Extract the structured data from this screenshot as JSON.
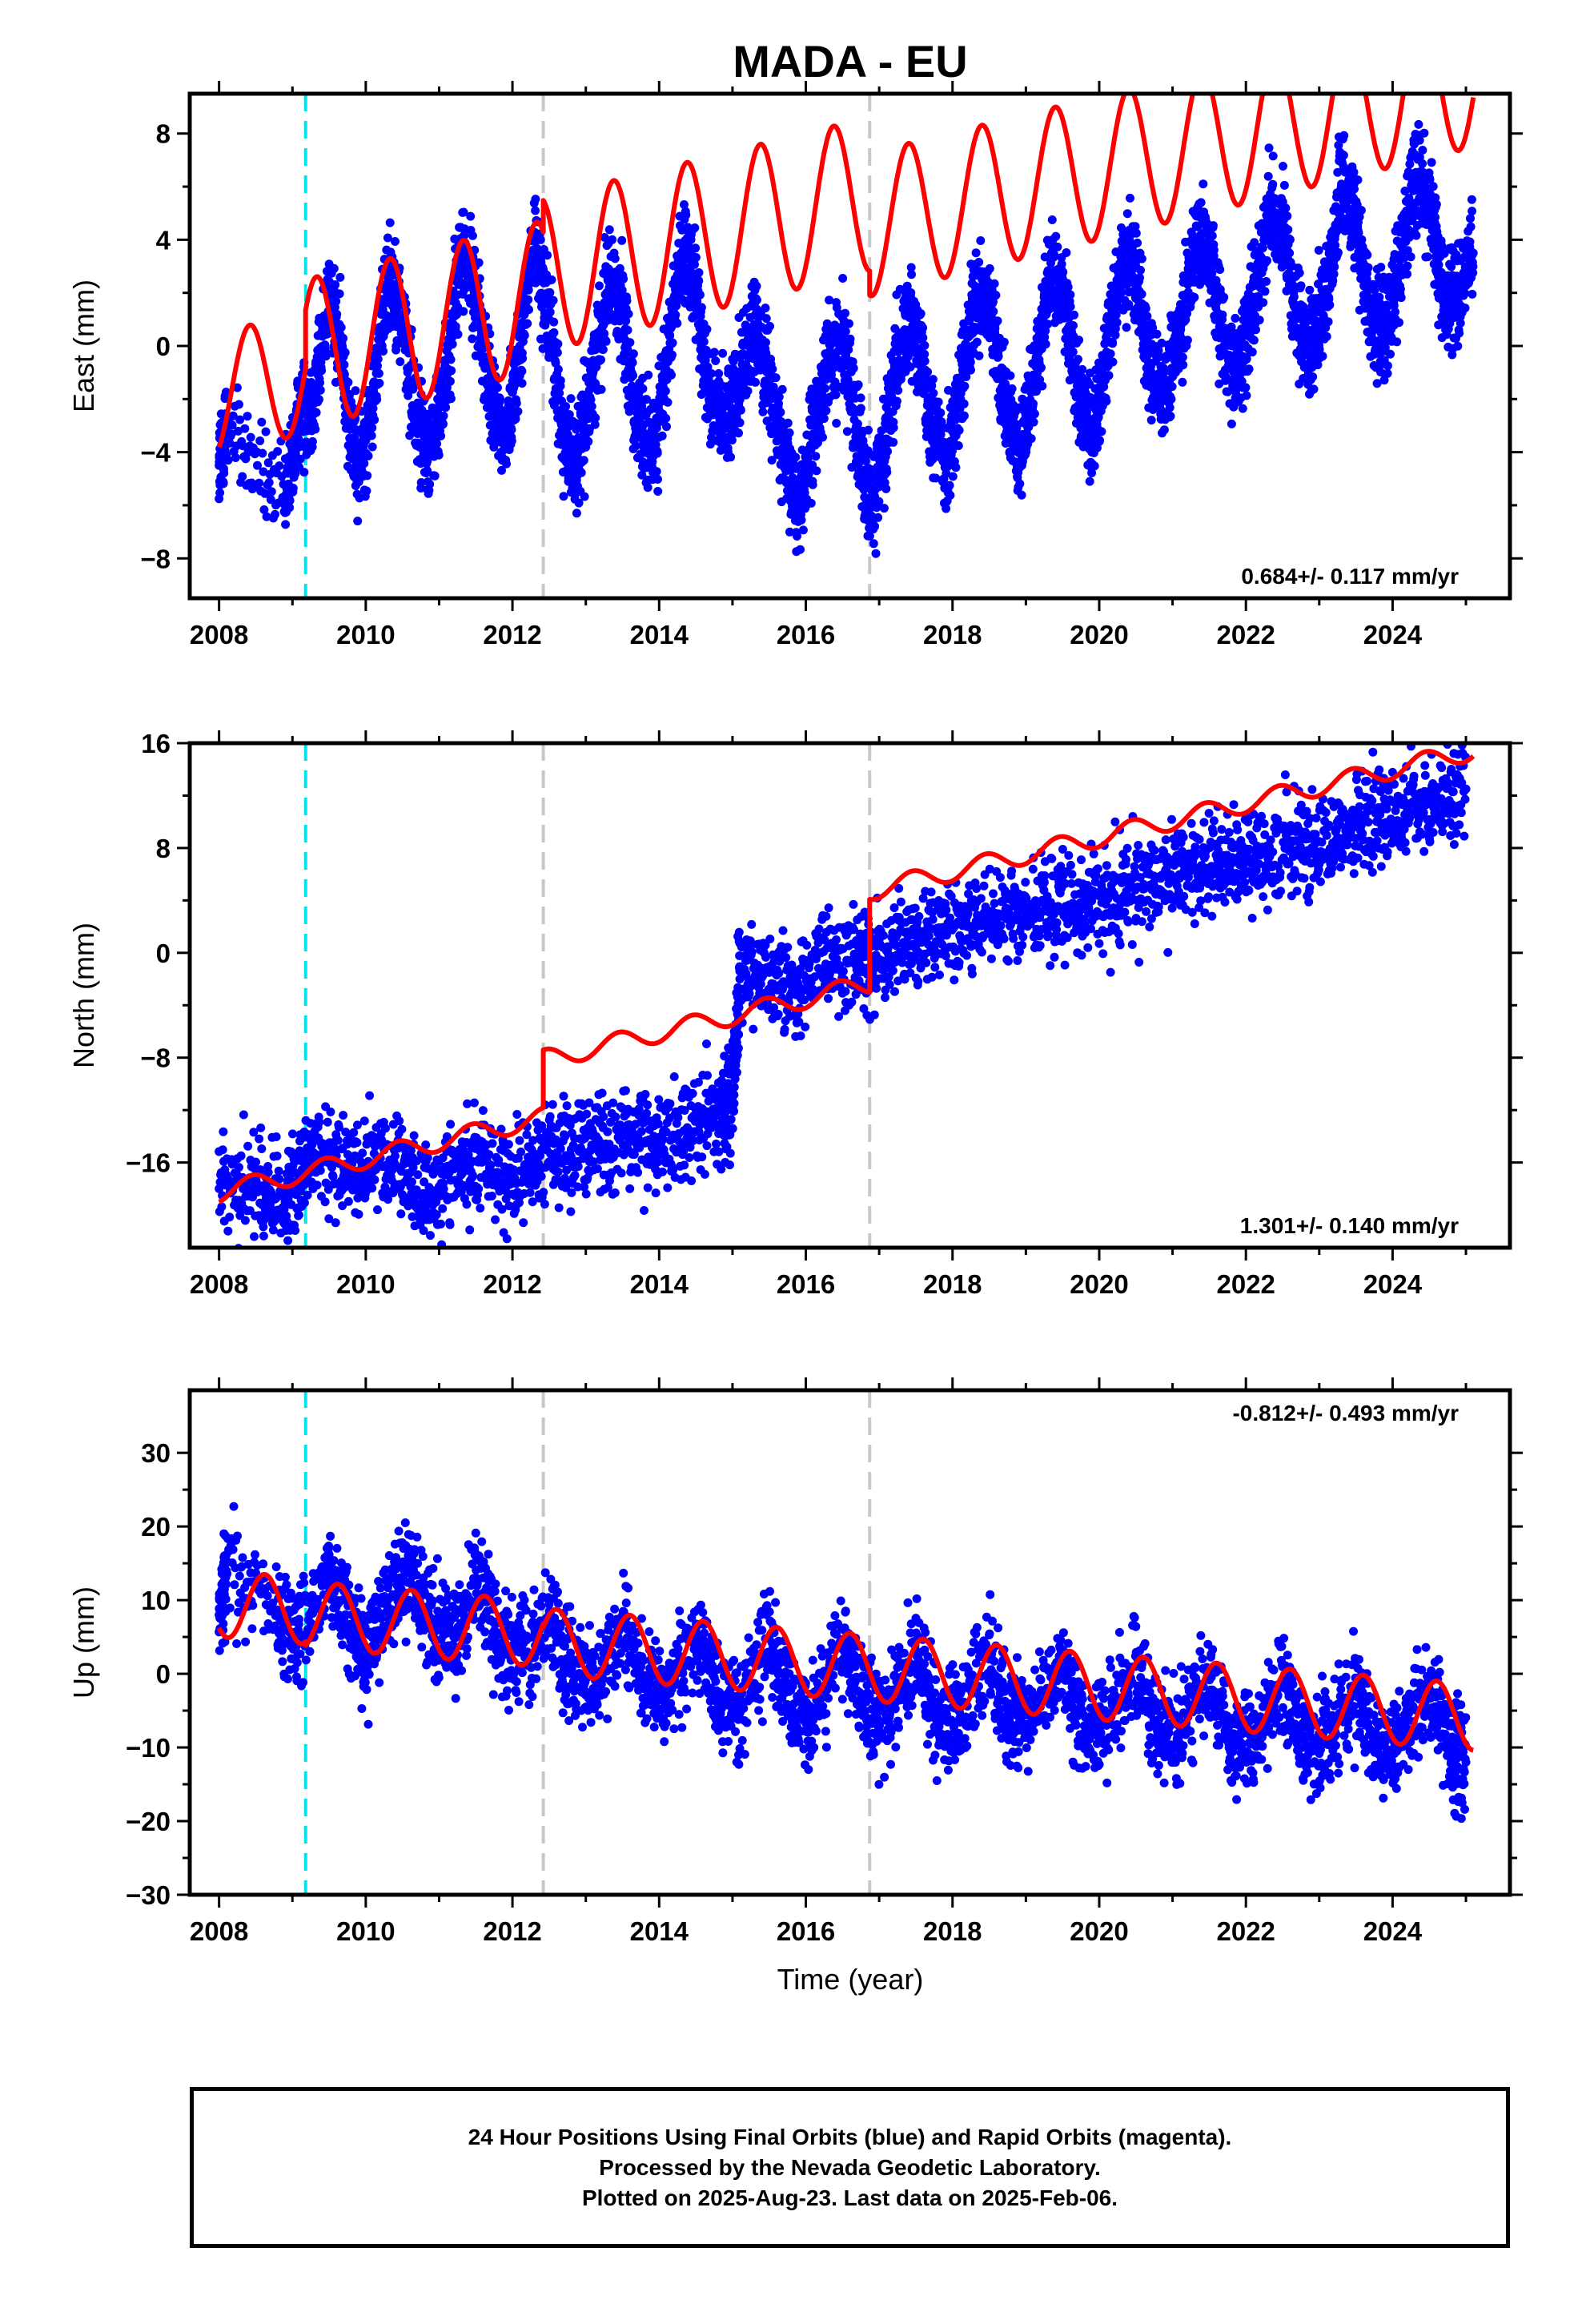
{
  "chart_data": {
    "title": "MADA - EU",
    "xlabel": "Time (year)",
    "x_ticks": [
      2008,
      2010,
      2012,
      2014,
      2016,
      2018,
      2020,
      2022,
      2024
    ],
    "xlim": [
      2007.6,
      2025.6
    ],
    "equipment_change_lines": [
      {
        "x": 2009.18,
        "color": "#00e5ee",
        "style": "dashed"
      },
      {
        "x": 2012.42,
        "color": "#c8c8c8",
        "style": "dashed"
      },
      {
        "x": 2016.87,
        "color": "#c8c8c8",
        "style": "dashed"
      }
    ],
    "panels": [
      {
        "type": "scatter",
        "ylabel": "East (mm)",
        "ylim": [
          -9.5,
          9.5
        ],
        "y_ticks": [
          -8,
          -4,
          0,
          4,
          8
        ],
        "y_tick_labels": [
          "−8",
          "−4",
          "0",
          "4",
          "8"
        ],
        "rate": "0.684+/- 0.117 mm/yr",
        "rate_position": "bottom-right",
        "series": [
          {
            "name": "24 hour positions",
            "color": "#0000ff",
            "points": [
              [
                2008.0,
                -4.5
              ],
              [
                2008.1,
                -3.0
              ],
              [
                2008.9,
                -6.0
              ],
              [
                2009.1,
                -2.5
              ],
              [
                2009.3,
                -2.0
              ],
              [
                2009.5,
                2.0
              ],
              [
                2009.7,
                -1.0
              ],
              [
                2009.9,
                -5.0
              ],
              [
                2010.1,
                -2.0
              ],
              [
                2010.3,
                3.0
              ],
              [
                2010.5,
                1.0
              ],
              [
                2010.7,
                -3.0
              ],
              [
                2010.9,
                -4.0
              ],
              [
                2011.1,
                -1.0
              ],
              [
                2011.3,
                3.5
              ],
              [
                2011.5,
                2.0
              ],
              [
                2011.7,
                -2.0
              ],
              [
                2011.9,
                -3.5
              ],
              [
                2012.1,
                0.0
              ],
              [
                2012.3,
                4.0
              ],
              [
                2012.5,
                1.0
              ],
              [
                2012.7,
                -3.5
              ],
              [
                2012.9,
                -4.5
              ],
              [
                2013.1,
                -1.0
              ],
              [
                2013.3,
                2.5
              ],
              [
                2013.5,
                1.5
              ],
              [
                2013.7,
                -3.0
              ],
              [
                2013.9,
                -4.0
              ],
              [
                2014.1,
                -1.0
              ],
              [
                2014.3,
                3.5
              ],
              [
                2014.5,
                2.0
              ],
              [
                2014.7,
                -2.0
              ],
              [
                2014.9,
                -3.0
              ],
              [
                2015.1,
                -1.0
              ],
              [
                2015.3,
                0.5
              ],
              [
                2015.5,
                -1.0
              ],
              [
                2015.7,
                -4.5
              ],
              [
                2015.9,
                -6.0
              ],
              [
                2016.1,
                -3.5
              ],
              [
                2016.3,
                -0.5
              ],
              [
                2016.5,
                0.0
              ],
              [
                2016.7,
                -3.0
              ],
              [
                2016.9,
                -6.0
              ],
              [
                2017.1,
                -3.5
              ],
              [
                2017.3,
                0.5
              ],
              [
                2017.5,
                1.0
              ],
              [
                2017.7,
                -2.5
              ],
              [
                2017.9,
                -4.5
              ],
              [
                2018.1,
                -2.0
              ],
              [
                2018.3,
                1.5
              ],
              [
                2018.5,
                1.5
              ],
              [
                2018.7,
                -2.0
              ],
              [
                2018.9,
                -4.0
              ],
              [
                2019.1,
                -1.5
              ],
              [
                2019.3,
                2.5
              ],
              [
                2019.5,
                2.5
              ],
              [
                2019.7,
                -1.5
              ],
              [
                2019.9,
                -3.5
              ],
              [
                2020.1,
                -0.5
              ],
              [
                2020.3,
                3.0
              ],
              [
                2020.5,
                3.0
              ],
              [
                2020.7,
                -1.0
              ],
              [
                2020.9,
                -2.0
              ],
              [
                2021.1,
                0.5
              ],
              [
                2021.3,
                4.0
              ],
              [
                2021.5,
                3.5
              ],
              [
                2021.7,
                0.0
              ],
              [
                2021.9,
                -1.0
              ],
              [
                2022.1,
                1.5
              ],
              [
                2022.3,
                5.0
              ],
              [
                2022.5,
                4.5
              ],
              [
                2022.7,
                0.5
              ],
              [
                2022.9,
                0.0
              ],
              [
                2023.1,
                2.0
              ],
              [
                2023.3,
                6.0
              ],
              [
                2023.5,
                5.0
              ],
              [
                2023.7,
                1.0
              ],
              [
                2023.9,
                0.5
              ],
              [
                2024.1,
                3.0
              ],
              [
                2024.3,
                6.5
              ],
              [
                2024.5,
                5.5
              ],
              [
                2024.7,
                1.5
              ],
              [
                2024.9,
                2.0
              ],
              [
                2025.1,
                3.5
              ]
            ]
          },
          {
            "name": "model fit",
            "color": "#ff0000",
            "params": {
              "t0": 2008.0,
              "t1": 2025.1,
              "segments": [
                {
                  "start": 2008.0,
                  "end": 2009.18,
                  "offset": -1.8,
                  "amp": 2.3,
                  "phase_peak": 0.42
                },
                {
                  "start": 2009.18,
                  "end": 2012.42,
                  "offset": -1.1,
                  "amp": 2.8,
                  "phase_peak": 0.33
                },
                {
                  "start": 2012.42,
                  "end": 2016.87,
                  "offset": -0.35,
                  "amp": 2.9,
                  "phase_peak": 0.38
                },
                {
                  "start": 2016.87,
                  "end": 2025.1,
                  "offset": -1.5,
                  "amp": 2.7,
                  "phase_peak": 0.4
                }
              ],
              "rate": 0.684
            }
          }
        ]
      },
      {
        "type": "scatter",
        "ylabel": "North (mm)",
        "ylim": [
          -22.5,
          16
        ],
        "y_ticks": [
          -16,
          -8,
          0,
          8,
          16
        ],
        "y_tick_labels": [
          "−16",
          "−8",
          "0",
          "8",
          "16"
        ],
        "rate": "1.301+/- 0.140 mm/yr",
        "rate_position": "bottom-right",
        "series": [
          {
            "name": "24 hour positions",
            "color": "#0000ff",
            "points": [
              [
                2008.0,
                -18.0
              ],
              [
                2008.5,
                -17.5
              ],
              [
                2008.9,
                -19.0
              ],
              [
                2009.2,
                -15.5
              ],
              [
                2009.6,
                -16.0
              ],
              [
                2010.0,
                -16.5
              ],
              [
                2010.4,
                -15.5
              ],
              [
                2010.8,
                -19.0
              ],
              [
                2011.2,
                -16.5
              ],
              [
                2011.6,
                -15.5
              ],
              [
                2012.0,
                -17.5
              ],
              [
                2012.4,
                -15.0
              ],
              [
                2012.8,
                -15.0
              ],
              [
                2013.2,
                -14.5
              ],
              [
                2013.6,
                -14.0
              ],
              [
                2014.0,
                -14.5
              ],
              [
                2014.4,
                -13.5
              ],
              [
                2014.8,
                -12.0
              ],
              [
                2015.0,
                -11.0
              ],
              [
                2015.1,
                -2.0
              ],
              [
                2015.5,
                -1.5
              ],
              [
                2015.9,
                -2.5
              ],
              [
                2016.3,
                -1.0
              ],
              [
                2016.7,
                -0.5
              ],
              [
                2017.0,
                -0.5
              ],
              [
                2017.4,
                0.5
              ],
              [
                2017.8,
                1.5
              ],
              [
                2018.2,
                2.0
              ],
              [
                2018.6,
                2.5
              ],
              [
                2019.0,
                3.0
              ],
              [
                2019.4,
                3.5
              ],
              [
                2019.8,
                4.0
              ],
              [
                2020.2,
                4.5
              ],
              [
                2020.6,
                5.0
              ],
              [
                2021.0,
                5.5
              ],
              [
                2021.4,
                6.5
              ],
              [
                2021.8,
                7.0
              ],
              [
                2022.2,
                7.5
              ],
              [
                2022.6,
                8.0
              ],
              [
                2023.0,
                8.5
              ],
              [
                2023.4,
                9.5
              ],
              [
                2023.8,
                10.0
              ],
              [
                2024.2,
                11.0
              ],
              [
                2024.6,
                11.5
              ],
              [
                2025.0,
                12.5
              ]
            ]
          },
          {
            "name": "model fit",
            "color": "#ff0000",
            "params": {
              "segments": [
                {
                  "start": 2008.0,
                  "end": 2012.42,
                  "offset": -18.3,
                  "amp": 0.75,
                  "phase_peak": 0.45
                },
                {
                  "start": 2012.42,
                  "end": 2016.87,
                  "offset": -13.9,
                  "amp": 0.75,
                  "phase_peak": 0.45
                },
                {
                  "start": 2016.87,
                  "end": 2025.1,
                  "offset": -6.8,
                  "amp": 0.75,
                  "phase_peak": 0.45
                }
              ],
              "rate": 1.301
            }
          }
        ]
      },
      {
        "type": "scatter",
        "ylabel": "Up (mm)",
        "ylim": [
          -30,
          38.5
        ],
        "y_ticks": [
          -30,
          -20,
          -10,
          0,
          10,
          20,
          30
        ],
        "y_tick_labels": [
          "−30",
          "−20",
          "−10",
          "0",
          "10",
          "20",
          "30"
        ],
        "rate": "-0.812+/- 0.493 mm/yr",
        "rate_position": "top-right",
        "series": [
          {
            "name": "24 hour positions",
            "color": "#0000ff",
            "points": [
              [
                2008.0,
                8.0
              ],
              [
                2008.1,
                14.0
              ],
              [
                2008.8,
                8.0
              ],
              [
                2009.1,
                5.0
              ],
              [
                2009.5,
                14.0
              ],
              [
                2009.8,
                6.0
              ],
              [
                2010.0,
                2.0
              ],
              [
                2010.3,
                10.0
              ],
              [
                2010.6,
                15.0
              ],
              [
                2010.9,
                6.0
              ],
              [
                2011.2,
                5.0
              ],
              [
                2011.5,
                13.0
              ],
              [
                2011.8,
                4.0
              ],
              [
                2012.1,
                3.0
              ],
              [
                2012.5,
                8.0
              ],
              [
                2012.8,
                0.0
              ],
              [
                2013.1,
                -2.0
              ],
              [
                2013.5,
                7.0
              ],
              [
                2013.8,
                -1.0
              ],
              [
                2014.1,
                -3.0
              ],
              [
                2014.5,
                6.0
              ],
              [
                2014.8,
                -3.0
              ],
              [
                2015.1,
                -4.0
              ],
              [
                2015.5,
                5.0
              ],
              [
                2015.8,
                -5.0
              ],
              [
                2016.1,
                -5.0
              ],
              [
                2016.5,
                4.0
              ],
              [
                2016.8,
                -5.0
              ],
              [
                2017.1,
                -6.0
              ],
              [
                2017.5,
                3.0
              ],
              [
                2017.8,
                -6.0
              ],
              [
                2018.1,
                -6.0
              ],
              [
                2018.5,
                2.0
              ],
              [
                2018.8,
                -7.0
              ],
              [
                2019.1,
                -6.0
              ],
              [
                2019.5,
                2.0
              ],
              [
                2019.8,
                -8.0
              ],
              [
                2020.1,
                -7.0
              ],
              [
                2020.5,
                1.0
              ],
              [
                2020.8,
                -8.0
              ],
              [
                2021.1,
                -8.0
              ],
              [
                2021.5,
                0.0
              ],
              [
                2021.8,
                -9.0
              ],
              [
                2022.1,
                -9.0
              ],
              [
                2022.5,
                -1.0
              ],
              [
                2022.8,
                -10.0
              ],
              [
                2023.1,
                -9.0
              ],
              [
                2023.5,
                -2.0
              ],
              [
                2023.8,
                -10.0
              ],
              [
                2024.1,
                -10.0
              ],
              [
                2024.5,
                -2.0
              ],
              [
                2024.8,
                -11.0
              ],
              [
                2025.0,
                -12.0
              ]
            ]
          },
          {
            "name": "model fit",
            "color": "#ff0000",
            "params": {
              "segments": [
                {
                  "start": 2008.0,
                  "end": 2009.18,
                  "offset": 9.5,
                  "amp": 4.5,
                  "phase_peak": 0.62
                },
                {
                  "start": 2009.18,
                  "end": 2012.42,
                  "offset": 9.0,
                  "amp": 4.5,
                  "phase_peak": 0.62
                },
                {
                  "start": 2012.42,
                  "end": 2016.87,
                  "offset": 8.0,
                  "amp": 4.5,
                  "phase_peak": 0.6
                },
                {
                  "start": 2016.87,
                  "end": 2025.1,
                  "offset": 8.0,
                  "amp": 4.5,
                  "phase_peak": 0.6
                }
              ],
              "rate": -0.812
            }
          }
        ]
      }
    ]
  },
  "footer": {
    "line1": "24 Hour Positions Using Final Orbits (blue) and Rapid Orbits (magenta).",
    "line2": "Processed by the Nevada Geodetic Laboratory.",
    "line3": "Plotted on 2025-Aug-23. Last data on 2025-Feb-06."
  }
}
